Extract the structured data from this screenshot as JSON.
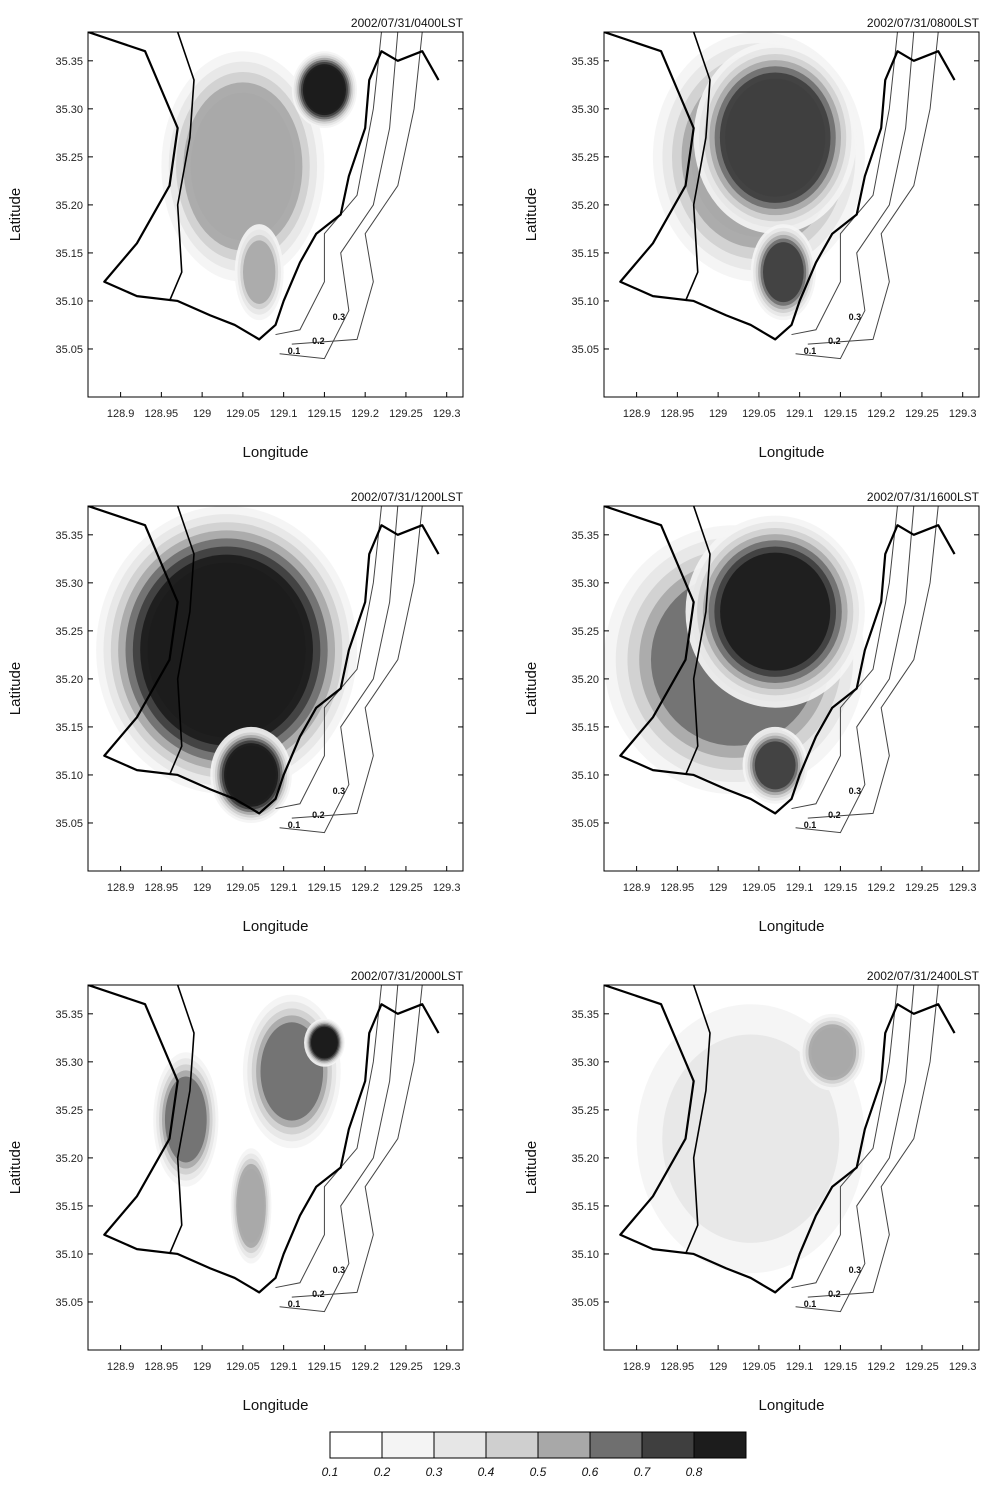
{
  "colors": {
    "levels": [
      "#ffffff",
      "#f4f4f4",
      "#e6e6e6",
      "#cfcfcf",
      "#a8a8a8",
      "#6f6f6f",
      "#3f3f3f",
      "#1c1c1c"
    ],
    "coast": "#000000",
    "contour": "#444444"
  },
  "legend": {
    "labels": [
      "0.1",
      "0.2",
      "0.3",
      "0.4",
      "0.5",
      "0.6",
      "0.7",
      "0.8"
    ]
  },
  "chart_data": [
    {
      "type": "heatmap",
      "title": "2002/07/31/0400LST",
      "xlabel": "Longitude",
      "ylabel": "Latitude",
      "xlim": [
        128.86,
        129.32
      ],
      "ylim": [
        35.0,
        35.38
      ],
      "xticks": [
        "128.9",
        "128.95",
        "129",
        "129.05",
        "129.1",
        "129.15",
        "129.2",
        "129.25",
        "129.3"
      ],
      "yticks": [
        "35.05",
        "35.10",
        "35.15",
        "35.20",
        "35.25",
        "35.30",
        "35.35"
      ],
      "contour_labels": [
        "0.1",
        "0.2",
        "0.3"
      ],
      "blobs": [
        {
          "lon": 129.05,
          "lat": 35.24,
          "rx": 0.1,
          "ry": 0.12,
          "value": 0.55
        },
        {
          "lon": 129.07,
          "lat": 35.13,
          "rx": 0.03,
          "ry": 0.05,
          "value": 0.5
        },
        {
          "lon": 129.15,
          "lat": 35.32,
          "rx": 0.04,
          "ry": 0.04,
          "value": 0.85
        }
      ]
    },
    {
      "type": "heatmap",
      "title": "2002/07/31/0800LST",
      "xlabel": "Longitude",
      "ylabel": "Latitude",
      "xlim": [
        128.86,
        129.32
      ],
      "ylim": [
        35.0,
        35.38
      ],
      "xticks": [
        "128.9",
        "128.95",
        "129",
        "129.05",
        "129.1",
        "129.15",
        "129.2",
        "129.25",
        "129.3"
      ],
      "yticks": [
        "35.05",
        "35.10",
        "35.15",
        "35.20",
        "35.25",
        "35.30",
        "35.35"
      ],
      "contour_labels": [
        "0.1",
        "0.2",
        "0.3"
      ],
      "blobs": [
        {
          "lon": 129.05,
          "lat": 35.25,
          "rx": 0.13,
          "ry": 0.13,
          "value": 0.55
        },
        {
          "lon": 129.07,
          "lat": 35.27,
          "rx": 0.1,
          "ry": 0.1,
          "value": 0.75
        },
        {
          "lon": 129.08,
          "lat": 35.13,
          "rx": 0.04,
          "ry": 0.05,
          "value": 0.7
        }
      ]
    },
    {
      "type": "heatmap",
      "title": "2002/07/31/1200LST",
      "xlabel": "Longitude",
      "ylabel": "Latitude",
      "xlim": [
        128.86,
        129.32
      ],
      "ylim": [
        35.0,
        35.38
      ],
      "xticks": [
        "128.9",
        "128.95",
        "129",
        "129.05",
        "129.1",
        "129.15",
        "129.2",
        "129.25",
        "129.3"
      ],
      "yticks": [
        "35.05",
        "35.10",
        "35.15",
        "35.20",
        "35.25",
        "35.30",
        "35.35"
      ],
      "contour_labels": [
        "0.1",
        "0.2",
        "0.3"
      ],
      "blobs": [
        {
          "lon": 129.03,
          "lat": 35.23,
          "rx": 0.16,
          "ry": 0.15,
          "value": 0.85
        },
        {
          "lon": 129.06,
          "lat": 35.1,
          "rx": 0.05,
          "ry": 0.05,
          "value": 0.85
        }
      ]
    },
    {
      "type": "heatmap",
      "title": "2002/07/31/1600LST",
      "xlabel": "Longitude",
      "ylabel": "Latitude",
      "xlim": [
        128.86,
        129.32
      ],
      "ylim": [
        35.0,
        35.38
      ],
      "xticks": [
        "128.9",
        "128.95",
        "129",
        "129.05",
        "129.1",
        "129.15",
        "129.2",
        "129.25",
        "129.3"
      ],
      "yticks": [
        "35.05",
        "35.10",
        "35.15",
        "35.20",
        "35.25",
        "35.30",
        "35.35"
      ],
      "contour_labels": [
        "0.1",
        "0.2",
        "0.3"
      ],
      "blobs": [
        {
          "lon": 129.02,
          "lat": 35.22,
          "rx": 0.16,
          "ry": 0.14,
          "value": 0.6
        },
        {
          "lon": 129.07,
          "lat": 35.27,
          "rx": 0.11,
          "ry": 0.1,
          "value": 0.82
        },
        {
          "lon": 129.07,
          "lat": 35.11,
          "rx": 0.04,
          "ry": 0.04,
          "value": 0.7
        }
      ]
    },
    {
      "type": "heatmap",
      "title": "2002/07/31/2000LST",
      "xlabel": "Longitude",
      "ylabel": "Latitude",
      "xlim": [
        128.86,
        129.32
      ],
      "ylim": [
        35.0,
        35.38
      ],
      "xticks": [
        "128.9",
        "128.95",
        "129",
        "129.05",
        "129.1",
        "129.15",
        "129.2",
        "129.25",
        "129.3"
      ],
      "yticks": [
        "35.05",
        "35.10",
        "35.15",
        "35.20",
        "35.25",
        "35.30",
        "35.35"
      ],
      "contour_labels": [
        "0.1",
        "0.2",
        "0.3"
      ],
      "blobs": [
        {
          "lon": 128.98,
          "lat": 35.24,
          "rx": 0.04,
          "ry": 0.07,
          "value": 0.6
        },
        {
          "lon": 129.11,
          "lat": 35.29,
          "rx": 0.06,
          "ry": 0.08,
          "value": 0.62
        },
        {
          "lon": 129.06,
          "lat": 35.15,
          "rx": 0.025,
          "ry": 0.06,
          "value": 0.55
        },
        {
          "lon": 129.15,
          "lat": 35.32,
          "rx": 0.025,
          "ry": 0.025,
          "value": 0.85
        }
      ]
    },
    {
      "type": "heatmap",
      "title": "2002/07/31/2400LST",
      "xlabel": "Longitude",
      "ylabel": "Latitude",
      "xlim": [
        128.86,
        129.32
      ],
      "ylim": [
        35.0,
        35.38
      ],
      "xticks": [
        "128.9",
        "128.95",
        "129",
        "129.05",
        "129.1",
        "129.15",
        "129.2",
        "129.25",
        "129.3"
      ],
      "yticks": [
        "35.05",
        "35.10",
        "35.15",
        "35.20",
        "35.25",
        "35.30",
        "35.35"
      ],
      "contour_labels": [
        "0.1",
        "0.2",
        "0.3"
      ],
      "blobs": [
        {
          "lon": 129.04,
          "lat": 35.22,
          "rx": 0.14,
          "ry": 0.14,
          "value": 0.32
        },
        {
          "lon": 129.14,
          "lat": 35.31,
          "rx": 0.04,
          "ry": 0.04,
          "value": 0.55
        }
      ]
    }
  ]
}
